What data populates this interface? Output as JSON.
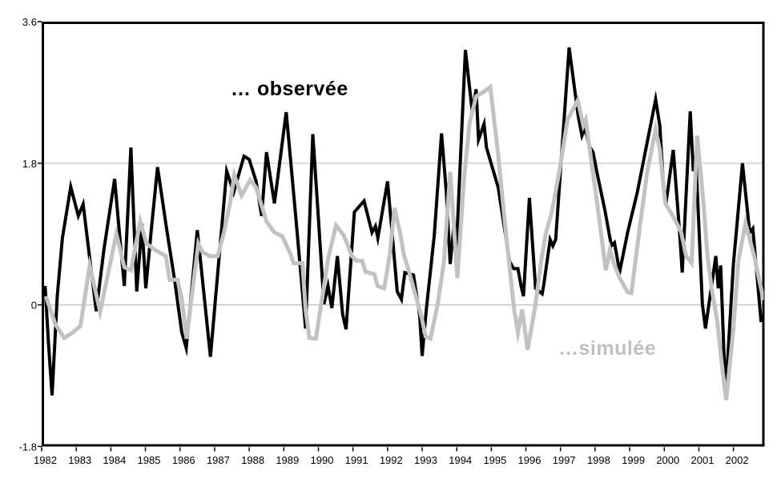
{
  "figure": {
    "background": "#ffffff",
    "frame_color": "#000000",
    "gridline_color": "#c0c0c0"
  },
  "chart_data": {
    "type": "line",
    "title": "",
    "xlabel": "",
    "ylabel": "",
    "xlim": [
      1982,
      2002.9
    ],
    "ylim": [
      -1.8,
      3.6
    ],
    "x_ticks": [
      1982,
      1983,
      1984,
      1985,
      1986,
      1987,
      1988,
      1989,
      1990,
      1991,
      1992,
      1993,
      1994,
      1995,
      1996,
      1997,
      1998,
      1999,
      2000,
      2001,
      2002
    ],
    "x_tick_labels": [
      "1982",
      "1983",
      "1984",
      "1985",
      "1986",
      "1987",
      "1988",
      "1989",
      "1990",
      "1991",
      "1992",
      "1993",
      "1994",
      "1995",
      "1996",
      "1997",
      "1998",
      "1999",
      "2000",
      "2001",
      "2002"
    ],
    "y_ticks": [
      -1.8,
      0,
      1.8,
      3.6
    ],
    "y_tick_labels": [
      "-1.8",
      "0",
      "1.8",
      "3.6"
    ],
    "grid_values": [
      0,
      1.8
    ],
    "legend_position": "in-plot-annotations",
    "series": [
      {
        "id": "observee",
        "name": "… observée",
        "color": "#000000",
        "stroke_width": 4,
        "points": [
          [
            1982.1,
            0.24
          ],
          [
            1982.2,
            -0.5
          ],
          [
            1982.3,
            -1.15
          ],
          [
            1982.45,
            0.1
          ],
          [
            1982.6,
            0.85
          ],
          [
            1982.84,
            1.5
          ],
          [
            1983.06,
            1.13
          ],
          [
            1983.2,
            1.28
          ],
          [
            1983.4,
            0.55
          ],
          [
            1983.58,
            -0.08
          ],
          [
            1983.8,
            0.7
          ],
          [
            1984.11,
            1.6
          ],
          [
            1984.25,
            0.9
          ],
          [
            1984.39,
            0.24
          ],
          [
            1984.58,
            2.0
          ],
          [
            1984.75,
            0.17
          ],
          [
            1984.9,
            1.03
          ],
          [
            1985.01,
            0.21
          ],
          [
            1985.18,
            1.0
          ],
          [
            1985.35,
            1.75
          ],
          [
            1985.6,
            1.0
          ],
          [
            1985.85,
            0.3
          ],
          [
            1986.05,
            -0.35
          ],
          [
            1986.18,
            -0.55
          ],
          [
            1986.5,
            0.95
          ],
          [
            1986.7,
            0.1
          ],
          [
            1986.88,
            -0.66
          ],
          [
            1987.1,
            0.45
          ],
          [
            1987.35,
            1.7
          ],
          [
            1987.55,
            1.43
          ],
          [
            1987.85,
            1.89
          ],
          [
            1988.0,
            1.85
          ],
          [
            1988.2,
            1.57
          ],
          [
            1988.36,
            1.13
          ],
          [
            1988.5,
            1.94
          ],
          [
            1988.73,
            1.29
          ],
          [
            1989.07,
            2.45
          ],
          [
            1989.35,
            1.1
          ],
          [
            1989.63,
            -0.3
          ],
          [
            1989.84,
            2.17
          ],
          [
            1990.0,
            1.1
          ],
          [
            1990.16,
            0.01
          ],
          [
            1990.28,
            0.24
          ],
          [
            1990.39,
            -0.04
          ],
          [
            1990.55,
            0.62
          ],
          [
            1990.7,
            -0.12
          ],
          [
            1990.8,
            -0.31
          ],
          [
            1991.04,
            1.18
          ],
          [
            1991.32,
            1.32
          ],
          [
            1991.55,
            0.92
          ],
          [
            1991.65,
            1.0
          ],
          [
            1991.72,
            0.85
          ],
          [
            1992.0,
            1.57
          ],
          [
            1992.28,
            0.17
          ],
          [
            1992.4,
            0.07
          ],
          [
            1992.5,
            0.41
          ],
          [
            1992.75,
            0.38
          ],
          [
            1992.93,
            -0.14
          ],
          [
            1993.0,
            -0.65
          ],
          [
            1993.12,
            -0.06
          ],
          [
            1993.35,
            0.88
          ],
          [
            1993.56,
            2.18
          ],
          [
            1993.7,
            1.43
          ],
          [
            1993.81,
            0.52
          ],
          [
            1993.91,
            0.97
          ],
          [
            1993.98,
            0.62
          ],
          [
            1994.25,
            3.24
          ],
          [
            1994.45,
            2.45
          ],
          [
            1994.56,
            2.74
          ],
          [
            1994.63,
            2.1
          ],
          [
            1994.79,
            2.3
          ],
          [
            1994.86,
            2.0
          ],
          [
            1995.2,
            1.49
          ],
          [
            1995.53,
            0.55
          ],
          [
            1995.65,
            0.46
          ],
          [
            1995.77,
            0.46
          ],
          [
            1995.86,
            0.24
          ],
          [
            1995.93,
            0.11
          ],
          [
            1996.1,
            1.36
          ],
          [
            1996.28,
            0.21
          ],
          [
            1996.47,
            0.14
          ],
          [
            1996.51,
            0.24
          ],
          [
            1996.7,
            0.83
          ],
          [
            1996.78,
            0.75
          ],
          [
            1996.86,
            0.83
          ],
          [
            1997.25,
            3.27
          ],
          [
            1997.37,
            2.87
          ],
          [
            1997.51,
            2.41
          ],
          [
            1997.62,
            2.15
          ],
          [
            1997.71,
            2.25
          ],
          [
            1997.83,
            2.02
          ],
          [
            1997.94,
            1.94
          ],
          [
            1998.06,
            1.67
          ],
          [
            1998.29,
            1.19
          ],
          [
            1998.47,
            0.75
          ],
          [
            1998.56,
            0.79
          ],
          [
            1998.71,
            0.42
          ],
          [
            1998.94,
            0.92
          ],
          [
            1999.22,
            1.43
          ],
          [
            1999.45,
            1.94
          ],
          [
            1999.75,
            2.61
          ],
          [
            1999.87,
            2.28
          ],
          [
            1999.98,
            1.49
          ],
          [
            2000.05,
            1.29
          ],
          [
            2000.26,
            1.97
          ],
          [
            2000.45,
            0.88
          ],
          [
            2000.52,
            0.41
          ],
          [
            2000.75,
            2.46
          ],
          [
            2000.84,
            1.7
          ],
          [
            2000.91,
            1.89
          ],
          [
            2001.1,
            0.01
          ],
          [
            2001.19,
            -0.3
          ],
          [
            2001.49,
            0.62
          ],
          [
            2001.56,
            0.21
          ],
          [
            2001.63,
            0.5
          ],
          [
            2001.77,
            -1.15
          ],
          [
            2002.0,
            0.52
          ],
          [
            2002.26,
            1.8
          ],
          [
            2002.47,
            0.92
          ],
          [
            2002.56,
            0.97
          ],
          [
            2002.8,
            -0.22
          ]
        ]
      },
      {
        "id": "simulee",
        "name": "…simulée",
        "color": "#c2c2c2",
        "stroke_width": 5,
        "points": [
          [
            1982.12,
            0.11
          ],
          [
            1982.4,
            -0.25
          ],
          [
            1982.65,
            -0.42
          ],
          [
            1982.9,
            -0.35
          ],
          [
            1983.12,
            -0.27
          ],
          [
            1983.39,
            0.5
          ],
          [
            1983.69,
            -0.09
          ],
          [
            1984.04,
            0.65
          ],
          [
            1984.16,
            0.9
          ],
          [
            1984.39,
            0.48
          ],
          [
            1984.58,
            0.44
          ],
          [
            1984.85,
            1.06
          ],
          [
            1985.03,
            0.78
          ],
          [
            1985.27,
            0.7
          ],
          [
            1985.59,
            0.62
          ],
          [
            1985.7,
            0.32
          ],
          [
            1985.93,
            0.32
          ],
          [
            1986.05,
            0.07
          ],
          [
            1986.19,
            -0.43
          ],
          [
            1986.53,
            0.78
          ],
          [
            1986.65,
            0.67
          ],
          [
            1986.86,
            0.62
          ],
          [
            1987.09,
            0.62
          ],
          [
            1987.27,
            0.92
          ],
          [
            1987.46,
            1.33
          ],
          [
            1987.57,
            1.65
          ],
          [
            1987.78,
            1.39
          ],
          [
            1988.03,
            1.59
          ],
          [
            1988.2,
            1.49
          ],
          [
            1988.5,
            1.06
          ],
          [
            1988.73,
            0.92
          ],
          [
            1988.96,
            0.87
          ],
          [
            1989.19,
            0.65
          ],
          [
            1989.28,
            0.53
          ],
          [
            1989.54,
            0.53
          ],
          [
            1989.63,
            -0.06
          ],
          [
            1989.74,
            -0.42
          ],
          [
            1989.93,
            -0.43
          ],
          [
            1990.05,
            -0.08
          ],
          [
            1990.12,
            0.11
          ],
          [
            1990.28,
            0.58
          ],
          [
            1990.51,
            1.01
          ],
          [
            1990.74,
            0.88
          ],
          [
            1990.97,
            0.62
          ],
          [
            1991.1,
            0.56
          ],
          [
            1991.27,
            0.56
          ],
          [
            1991.36,
            0.42
          ],
          [
            1991.62,
            0.39
          ],
          [
            1991.71,
            0.24
          ],
          [
            1991.9,
            0.21
          ],
          [
            1992.06,
            0.62
          ],
          [
            1992.2,
            1.23
          ],
          [
            1992.36,
            0.92
          ],
          [
            1992.48,
            0.62
          ],
          [
            1992.59,
            0.47
          ],
          [
            1992.78,
            0.17
          ],
          [
            1992.99,
            -0.17
          ],
          [
            1993.1,
            -0.4
          ],
          [
            1993.24,
            -0.43
          ],
          [
            1993.45,
            0.01
          ],
          [
            1993.63,
            0.55
          ],
          [
            1993.81,
            1.69
          ],
          [
            1994.02,
            0.34
          ],
          [
            1994.21,
            1.6
          ],
          [
            1994.37,
            2.31
          ],
          [
            1994.56,
            2.65
          ],
          [
            1994.79,
            2.71
          ],
          [
            1994.97,
            2.77
          ],
          [
            1995.2,
            1.9
          ],
          [
            1995.43,
            0.88
          ],
          [
            1995.66,
            -0.06
          ],
          [
            1995.77,
            -0.35
          ],
          [
            1995.89,
            -0.06
          ],
          [
            1996.05,
            -0.57
          ],
          [
            1996.28,
            0.01
          ],
          [
            1996.44,
            0.55
          ],
          [
            1996.58,
            0.92
          ],
          [
            1996.74,
            1.16
          ],
          [
            1996.97,
            1.7
          ],
          [
            1997.2,
            2.35
          ],
          [
            1997.5,
            2.6
          ],
          [
            1997.66,
            2.28
          ],
          [
            1997.73,
            2.35
          ],
          [
            1998.06,
            1.29
          ],
          [
            1998.2,
            0.82
          ],
          [
            1998.31,
            0.44
          ],
          [
            1998.43,
            0.7
          ],
          [
            1998.54,
            0.53
          ],
          [
            1998.71,
            0.34
          ],
          [
            1998.94,
            0.16
          ],
          [
            1999.05,
            0.15
          ],
          [
            1999.28,
            0.95
          ],
          [
            1999.51,
            1.7
          ],
          [
            1999.75,
            2.23
          ],
          [
            1999.87,
            1.97
          ],
          [
            2000.03,
            1.29
          ],
          [
            2000.21,
            1.16
          ],
          [
            2000.37,
            1.03
          ],
          [
            2000.49,
            0.92
          ],
          [
            2000.63,
            0.62
          ],
          [
            2000.79,
            0.53
          ],
          [
            2000.95,
            2.15
          ],
          [
            2001.14,
            1.26
          ],
          [
            2001.25,
            0.62
          ],
          [
            2001.37,
            0.21
          ],
          [
            2001.53,
            -0.2
          ],
          [
            2001.67,
            -0.78
          ],
          [
            2001.79,
            -1.21
          ],
          [
            2002.0,
            -0.3
          ],
          [
            2002.14,
            0.55
          ],
          [
            2002.35,
            1.04
          ],
          [
            2002.6,
            0.62
          ],
          [
            2002.87,
            0.06
          ]
        ]
      }
    ],
    "annotations": [
      {
        "text": "… observée",
        "color": "#000000"
      },
      {
        "text": "…simulée",
        "color": "#bfbfbf"
      }
    ]
  }
}
